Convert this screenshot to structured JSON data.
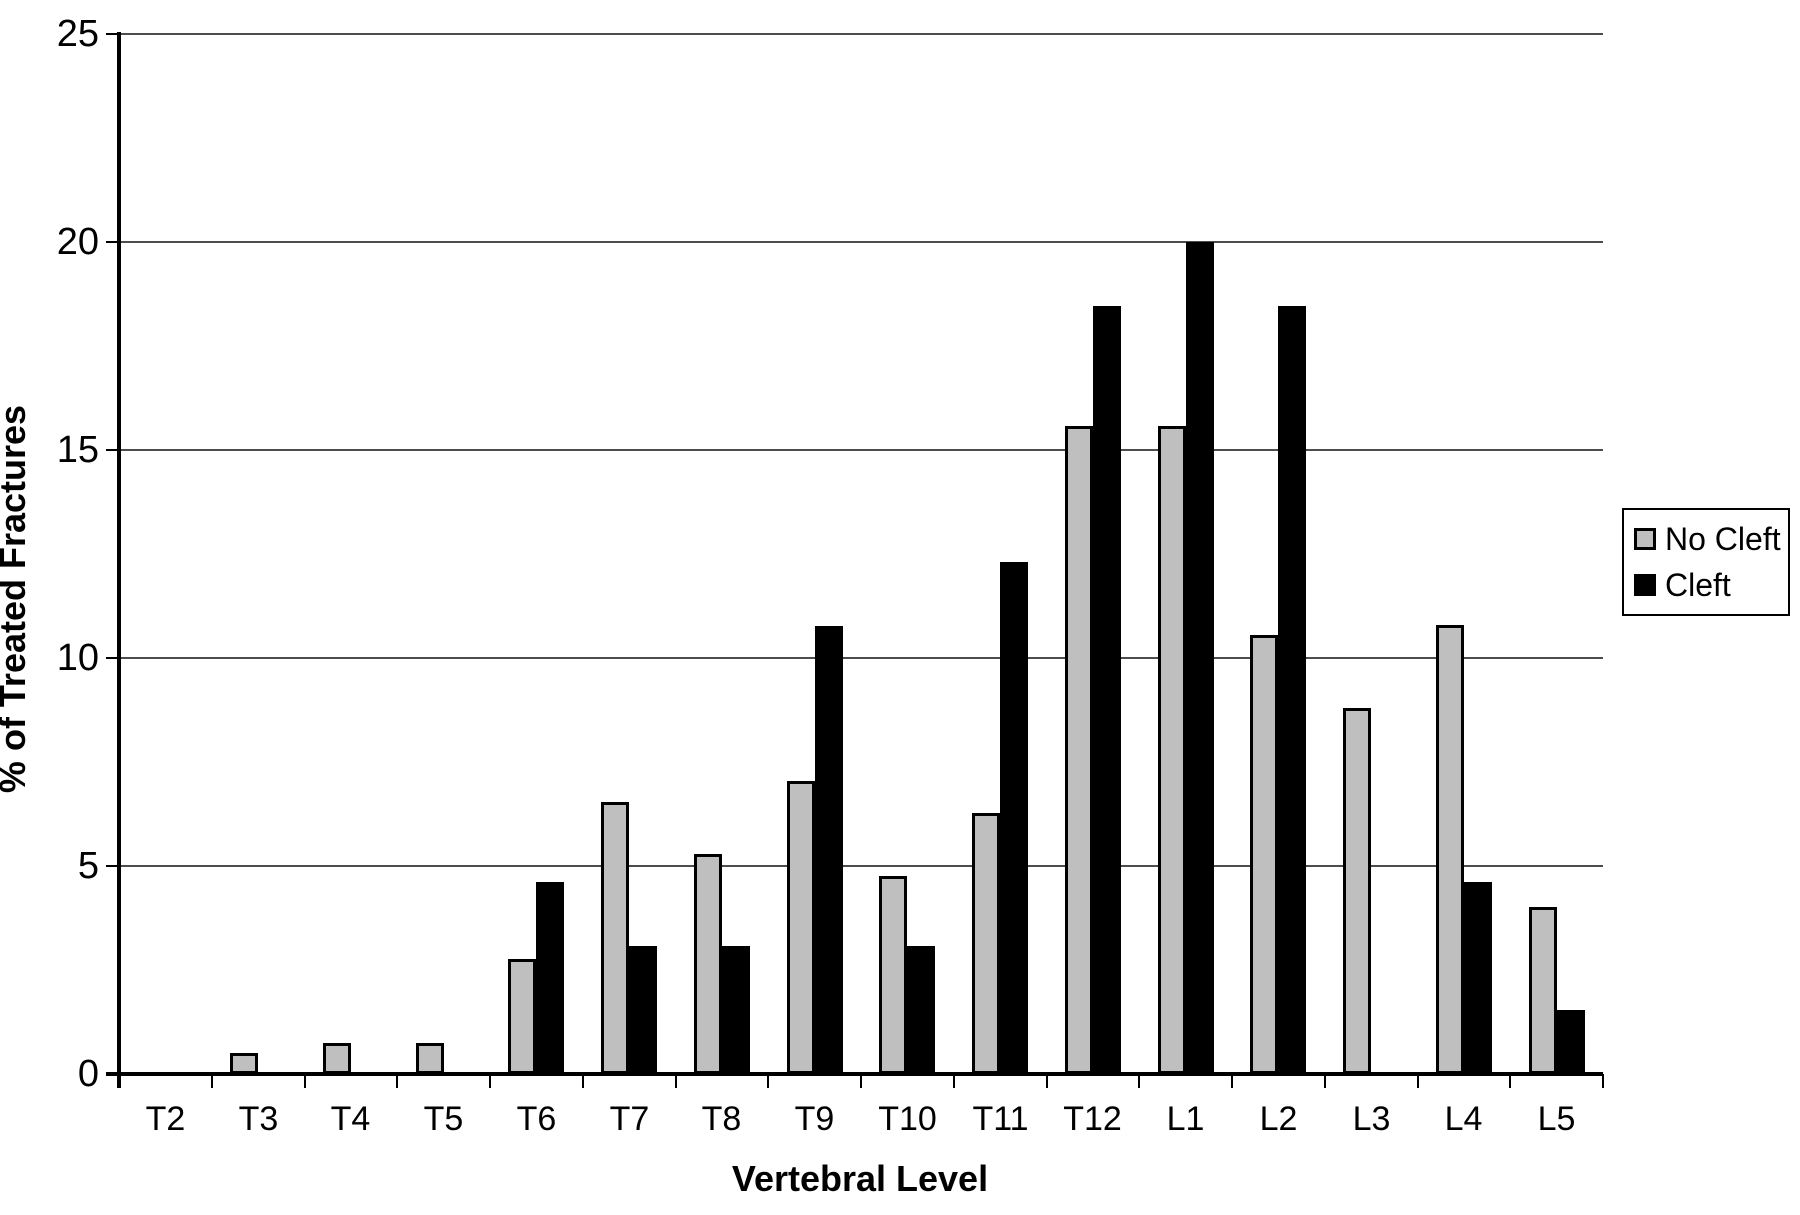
{
  "chart_data": {
    "type": "bar",
    "title": "",
    "xlabel": "Vertebral Level",
    "ylabel": "% of Treated Fractures",
    "ylim": [
      0,
      25
    ],
    "yticks": [
      0,
      5,
      10,
      15,
      20,
      25
    ],
    "grid": true,
    "legend_position": "right",
    "categories": [
      "T2",
      "T3",
      "T4",
      "T5",
      "T6",
      "T7",
      "T8",
      "T9",
      "T10",
      "T11",
      "T12",
      "L1",
      "L2",
      "L3",
      "L4",
      "L5"
    ],
    "series": [
      {
        "name": "No Cleft",
        "color": "#bfbfbf",
        "values": [
          0,
          0.5,
          0.75,
          0.75,
          2.76,
          6.53,
          5.28,
          7.04,
          4.77,
          6.28,
          15.58,
          15.58,
          10.55,
          8.79,
          10.8,
          4.02
        ]
      },
      {
        "name": "Cleft",
        "color": "#000000",
        "values": [
          0,
          0,
          0,
          0,
          4.62,
          3.08,
          3.08,
          10.77,
          3.08,
          12.31,
          18.46,
          20.0,
          18.46,
          0,
          4.62,
          1.54
        ]
      }
    ]
  },
  "legend": {
    "items": [
      {
        "label": "No Cleft",
        "color": "#bfbfbf"
      },
      {
        "label": "Cleft",
        "color": "#000000"
      }
    ]
  }
}
